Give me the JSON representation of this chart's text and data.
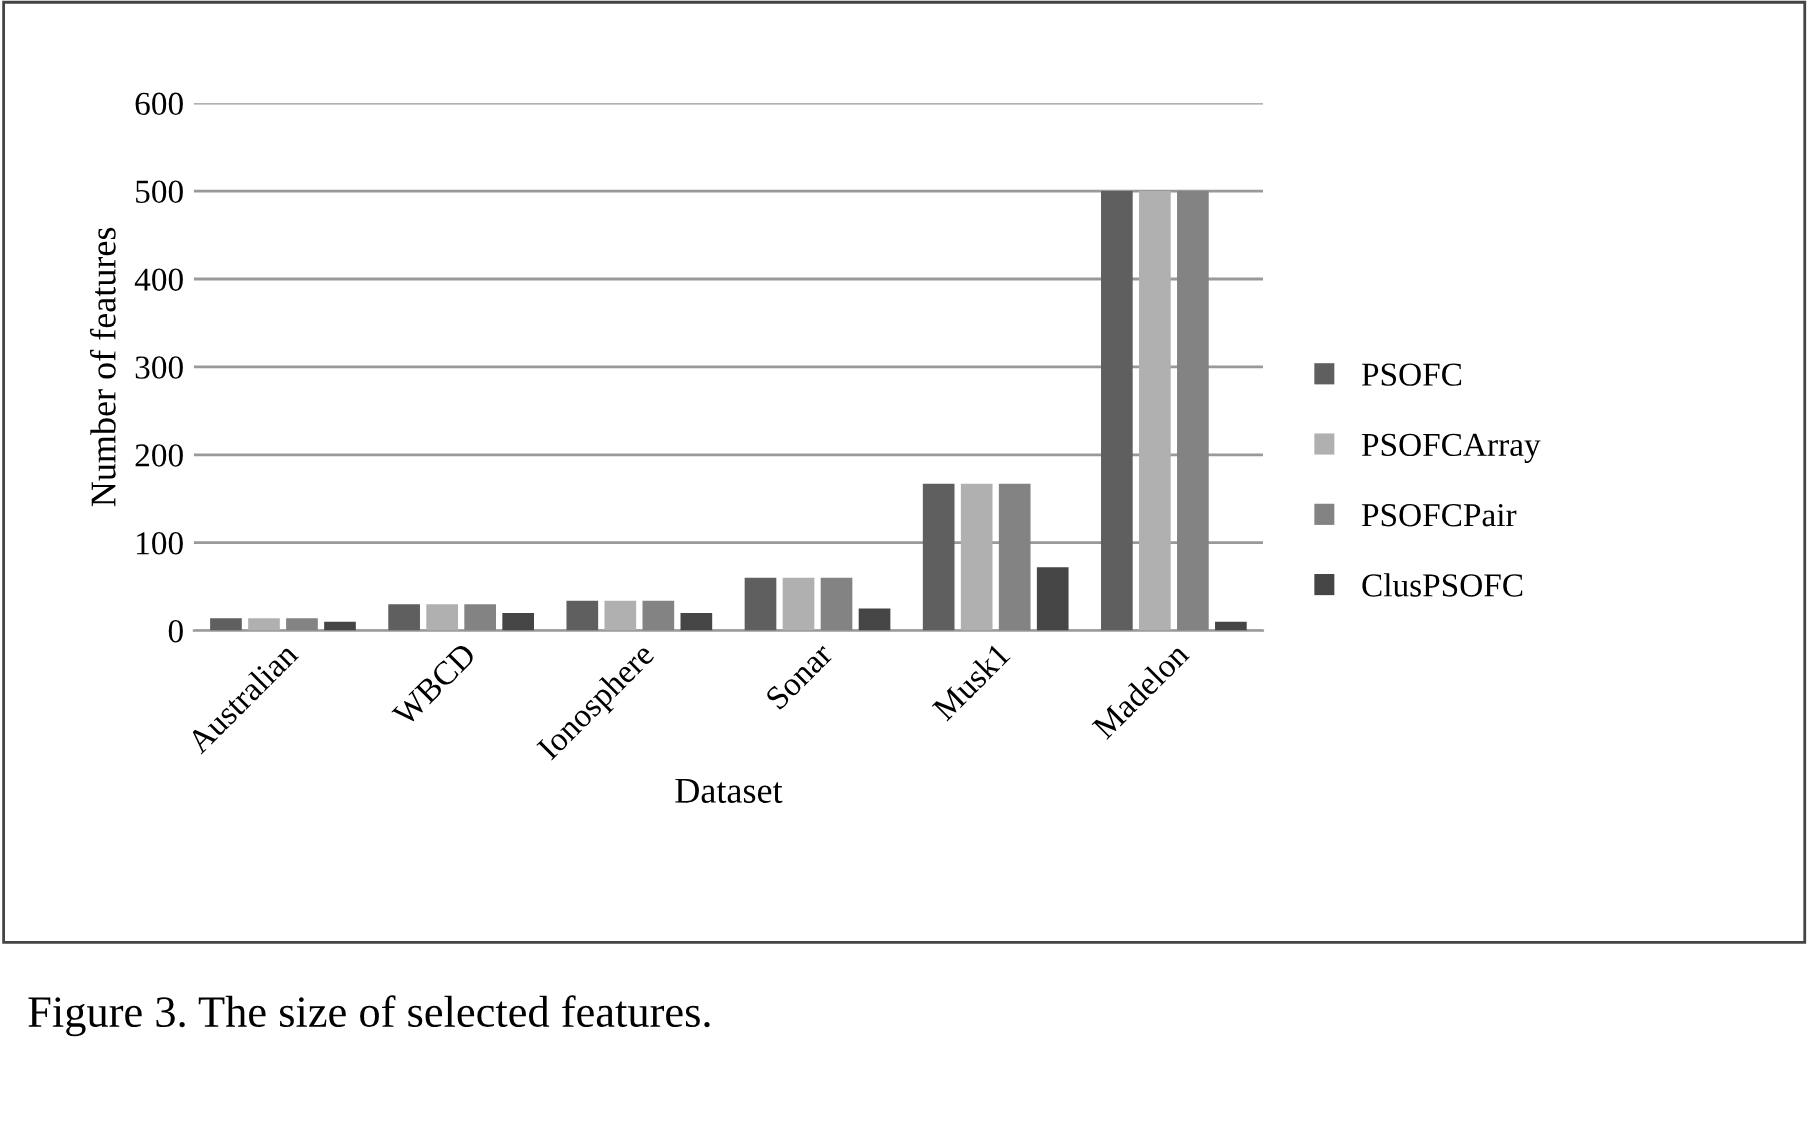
{
  "chart_data": {
    "type": "bar",
    "xlabel": "Dataset",
    "ylabel": "Number of features",
    "categories": [
      "Australian",
      "WBCD",
      "Ionosphere",
      "Sonar",
      "Musk1",
      "Madelon"
    ],
    "series": [
      {
        "name": "PSOFC",
        "color": "#5f5f5f",
        "values": [
          14,
          30,
          34,
          60,
          167,
          500
        ]
      },
      {
        "name": "PSOFCArray",
        "color": "#b0b0b0",
        "values": [
          14,
          30,
          34,
          60,
          167,
          500
        ]
      },
      {
        "name": "PSOFCPair",
        "color": "#838383",
        "values": [
          14,
          30,
          34,
          60,
          167,
          500
        ]
      },
      {
        "name": "ClusPSOFC",
        "color": "#454545",
        "values": [
          10,
          20,
          20,
          25,
          72,
          10
        ]
      }
    ],
    "ylim": [
      0,
      600
    ],
    "yticks": [
      0,
      100,
      200,
      300,
      400,
      500,
      600
    ],
    "grid": "y",
    "legend": "right",
    "annotations": [
      "Figure 3. The size of selected features."
    ]
  }
}
